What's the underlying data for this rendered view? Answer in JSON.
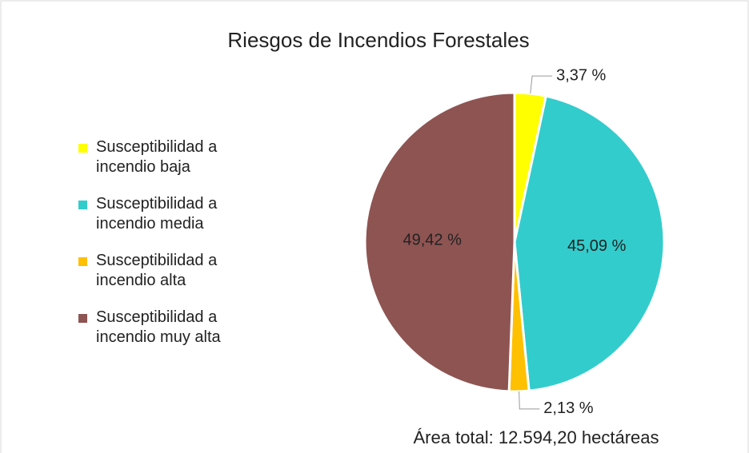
{
  "chart_data": {
    "type": "pie",
    "title": "Riesgos de Incendios Forestales",
    "categories": [
      "Susceptibilidad a incendio baja",
      "Susceptibilidad a incendio media",
      "Susceptibilidad a incendio alta",
      "Susceptibilidad a incendio muy alta"
    ],
    "values": [
      3.37,
      45.09,
      2.13,
      49.42
    ],
    "value_labels": [
      "3,37 %",
      "45,09 %",
      "2,13 %",
      "49,42 %"
    ],
    "colors": [
      "#ffff00",
      "#33cccc",
      "#ffc000",
      "#8e5452"
    ],
    "legend": "left",
    "annotation": "Área total: 12.594,20 hectáreas"
  }
}
